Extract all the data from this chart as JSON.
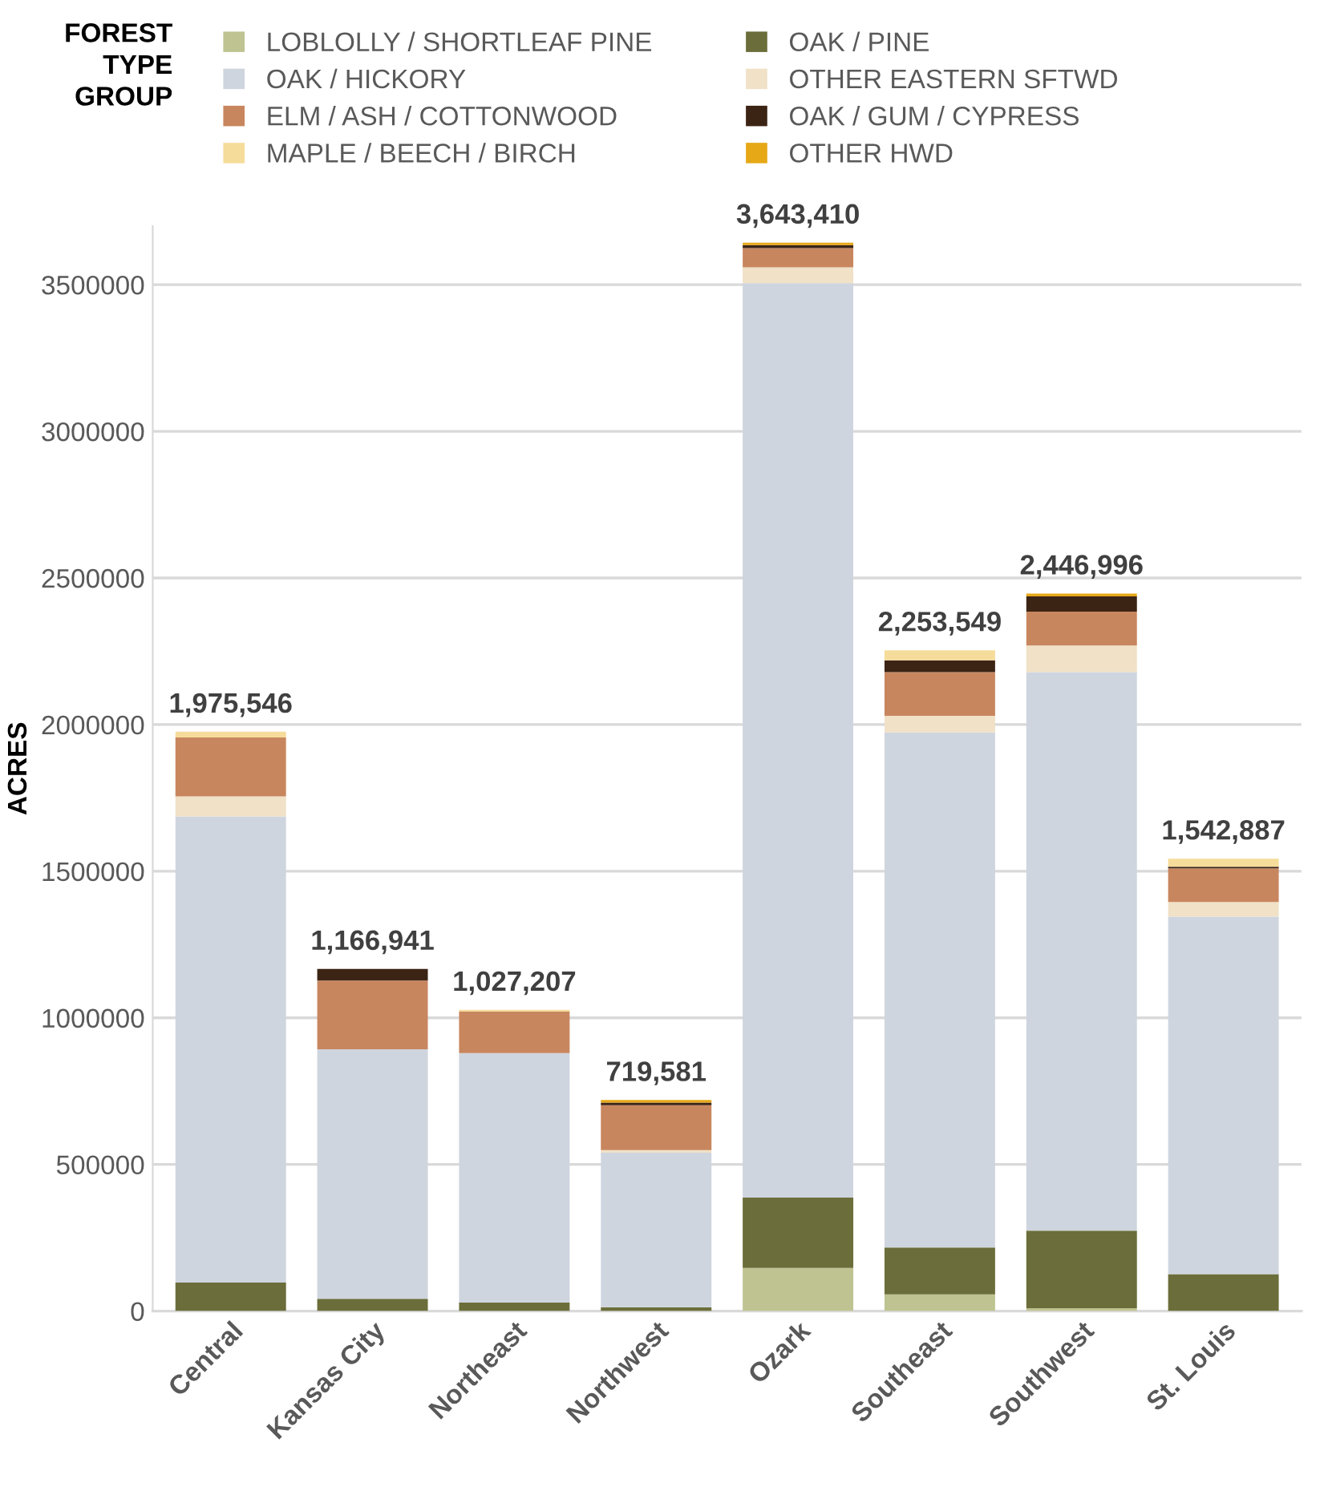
{
  "chart_data": {
    "type": "bar",
    "stacked": true,
    "ylabel": "ACRES",
    "legend_title": "FOREST\nTYPE\nGROUP",
    "legend": "top",
    "categories": [
      "Central",
      "Kansas City",
      "Northeast",
      "Northwest",
      "Ozark",
      "Southeast",
      "Southwest",
      "St. Louis"
    ],
    "series": [
      {
        "name": "LOBLOLLY / SHORTLEAF PINE",
        "color": "#bfc391",
        "values": [
          null,
          null,
          null,
          null,
          147000,
          57000,
          10000,
          null
        ]
      },
      {
        "name": "OAK / PINE",
        "color": "#6b6e3a",
        "values": [
          97000,
          42000,
          29000,
          13000,
          240000,
          160000,
          264000,
          126000
        ]
      },
      {
        "name": "OAK / HICKORY",
        "color": "#cfd5df",
        "values": [
          1590000,
          851000,
          851000,
          527000,
          3118000,
          1756000,
          1905000,
          1219000
        ]
      },
      {
        "name": "OTHER EASTERN SFTWD",
        "color": "#f0e1c7",
        "values": [
          68000,
          null,
          null,
          9000,
          54000,
          57000,
          91000,
          50000
        ]
      },
      {
        "name": "ELM / ASH / COTTONWOOD",
        "color": "#c8865e",
        "values": [
          201000,
          234000,
          142000,
          153000,
          66000,
          149000,
          115000,
          115000
        ]
      },
      {
        "name": "OAK / GUM / CYPRESS",
        "color": "#3c2415",
        "values": [
          null,
          39941,
          null,
          9000,
          10000,
          40000,
          52000,
          5000
        ]
      },
      {
        "name": "MAPLE / BEECH / BIRCH",
        "color": "#f6dc9a",
        "values": [
          19546,
          null,
          5207,
          null,
          null,
          34549,
          null,
          27887
        ]
      },
      {
        "name": "OTHER HWD",
        "color": "#e6a817",
        "values": [
          null,
          null,
          null,
          8581,
          8410,
          null,
          9996,
          null
        ]
      }
    ],
    "totals": [
      "1,975,546",
      "1,166,941",
      "1,027,207",
      "719,581",
      "3,643,410",
      "2,253,549",
      "2,446,996",
      "1,542,887"
    ],
    "ylim": [
      0,
      3700000
    ],
    "yticks": [
      0,
      500000,
      1000000,
      1500000,
      2000000,
      2500000,
      3000000,
      3500000
    ],
    "grid": "y"
  }
}
